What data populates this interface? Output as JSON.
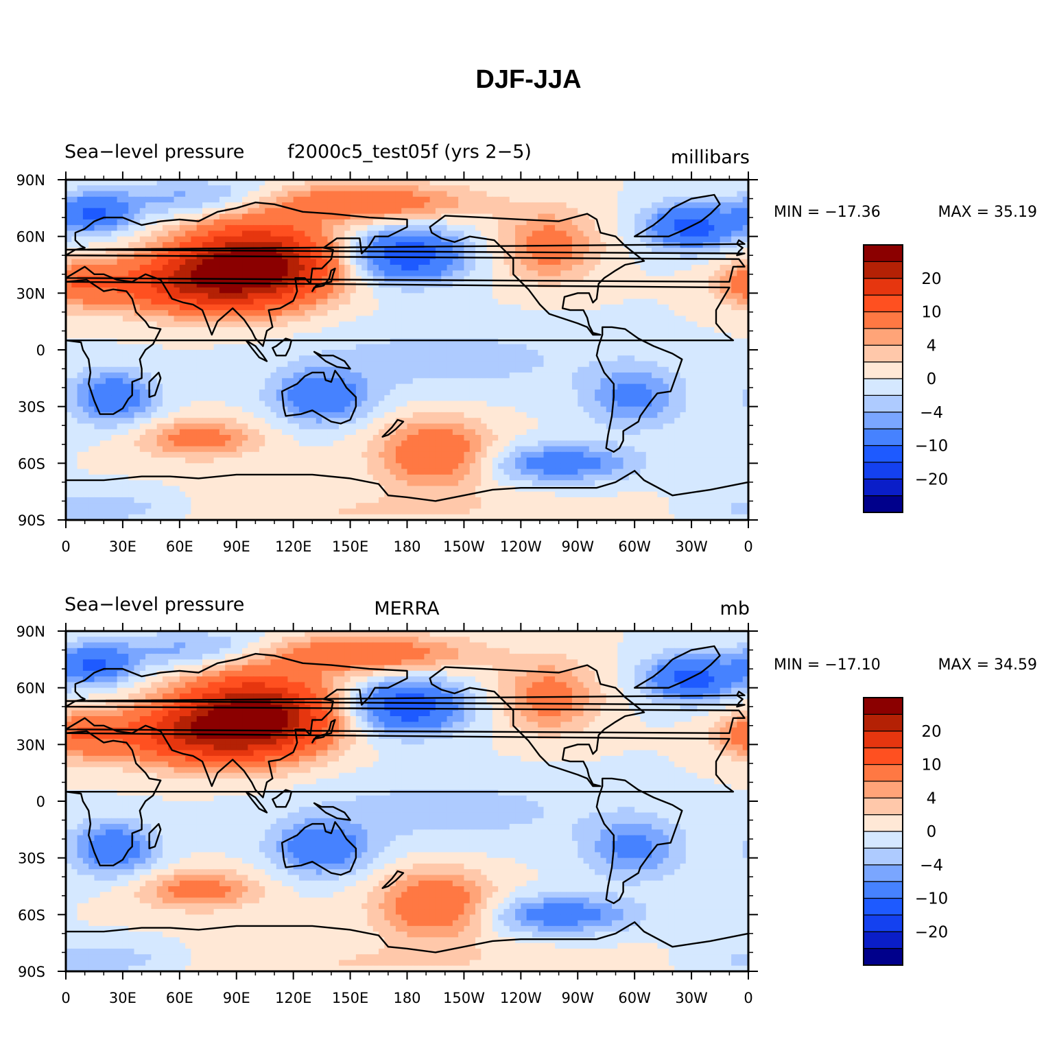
{
  "title": "DJF-JJA",
  "palette": [
    "#00008b",
    "#0a1ec8",
    "#1441f0",
    "#1e5aff",
    "#4682ff",
    "#7aa6ff",
    "#aecbff",
    "#d5e8ff",
    "#ffe8d6",
    "#ffc8aa",
    "#ffa478",
    "#ff7843",
    "#ff5020",
    "#e6360f",
    "#b42105",
    "#8b0000"
  ],
  "colorbar_labels": [
    "20",
    "10",
    "4",
    "0",
    "−4",
    "−10",
    "−20"
  ],
  "chart_data": [
    {
      "type": "heatmap",
      "left_title": "Sea−level pressure",
      "center_title": "f2000c5_test05f (yrs 2−5)",
      "units": "millibars",
      "min_label": "MIN = −17.36",
      "max_label": "MAX =   35.19",
      "min": -17.36,
      "max": 35.19,
      "x_ticks": [
        "0",
        "30E",
        "60E",
        "90E",
        "120E",
        "150E",
        "180",
        "150W",
        "120W",
        "90W",
        "60W",
        "30W",
        "0"
      ],
      "y_ticks": [
        "90N",
        "60N",
        "30N",
        "0",
        "30S",
        "60S",
        "90S"
      ],
      "colorbar_levels": [
        -30,
        -25,
        -20,
        -15,
        -10,
        -6,
        -4,
        -2,
        0,
        2,
        4,
        6,
        10,
        15,
        20,
        25
      ],
      "field_features": [
        {
          "name": "Siberian high",
          "lon": 100,
          "lat": 45,
          "value": 32
        },
        {
          "name": "Aleutian low",
          "lon": 180,
          "lat": 50,
          "value": -14
        },
        {
          "name": "Icelandic low",
          "lon": 330,
          "lat": 65,
          "value": -14
        },
        {
          "name": "Southern Africa low",
          "lon": 25,
          "lat": -25,
          "value": -10
        },
        {
          "name": "Australia low",
          "lon": 135,
          "lat": -25,
          "value": -10
        }
      ]
    },
    {
      "type": "heatmap",
      "left_title": "Sea−level pressure",
      "center_title": "MERRA",
      "units": "mb",
      "min_label": "MIN = −17.10",
      "max_label": "MAX =   34.59",
      "min": -17.1,
      "max": 34.59,
      "x_ticks": [
        "0",
        "30E",
        "60E",
        "90E",
        "120E",
        "150E",
        "180",
        "150W",
        "120W",
        "90W",
        "60W",
        "30W",
        "0"
      ],
      "y_ticks": [
        "90N",
        "60N",
        "30N",
        "0",
        "30S",
        "60S",
        "90S"
      ],
      "colorbar_levels": [
        -30,
        -25,
        -20,
        -15,
        -10,
        -6,
        -4,
        -2,
        0,
        2,
        4,
        6,
        10,
        15,
        20,
        25
      ],
      "field_features": [
        {
          "name": "Siberian high",
          "lon": 100,
          "lat": 45,
          "value": 30
        },
        {
          "name": "Aleutian low",
          "lon": 180,
          "lat": 50,
          "value": -14
        },
        {
          "name": "Icelandic low",
          "lon": 330,
          "lat": 65,
          "value": -12
        },
        {
          "name": "Southern Africa low",
          "lon": 25,
          "lat": -25,
          "value": -9
        },
        {
          "name": "Australia low",
          "lon": 135,
          "lat": -25,
          "value": -9
        }
      ]
    }
  ]
}
